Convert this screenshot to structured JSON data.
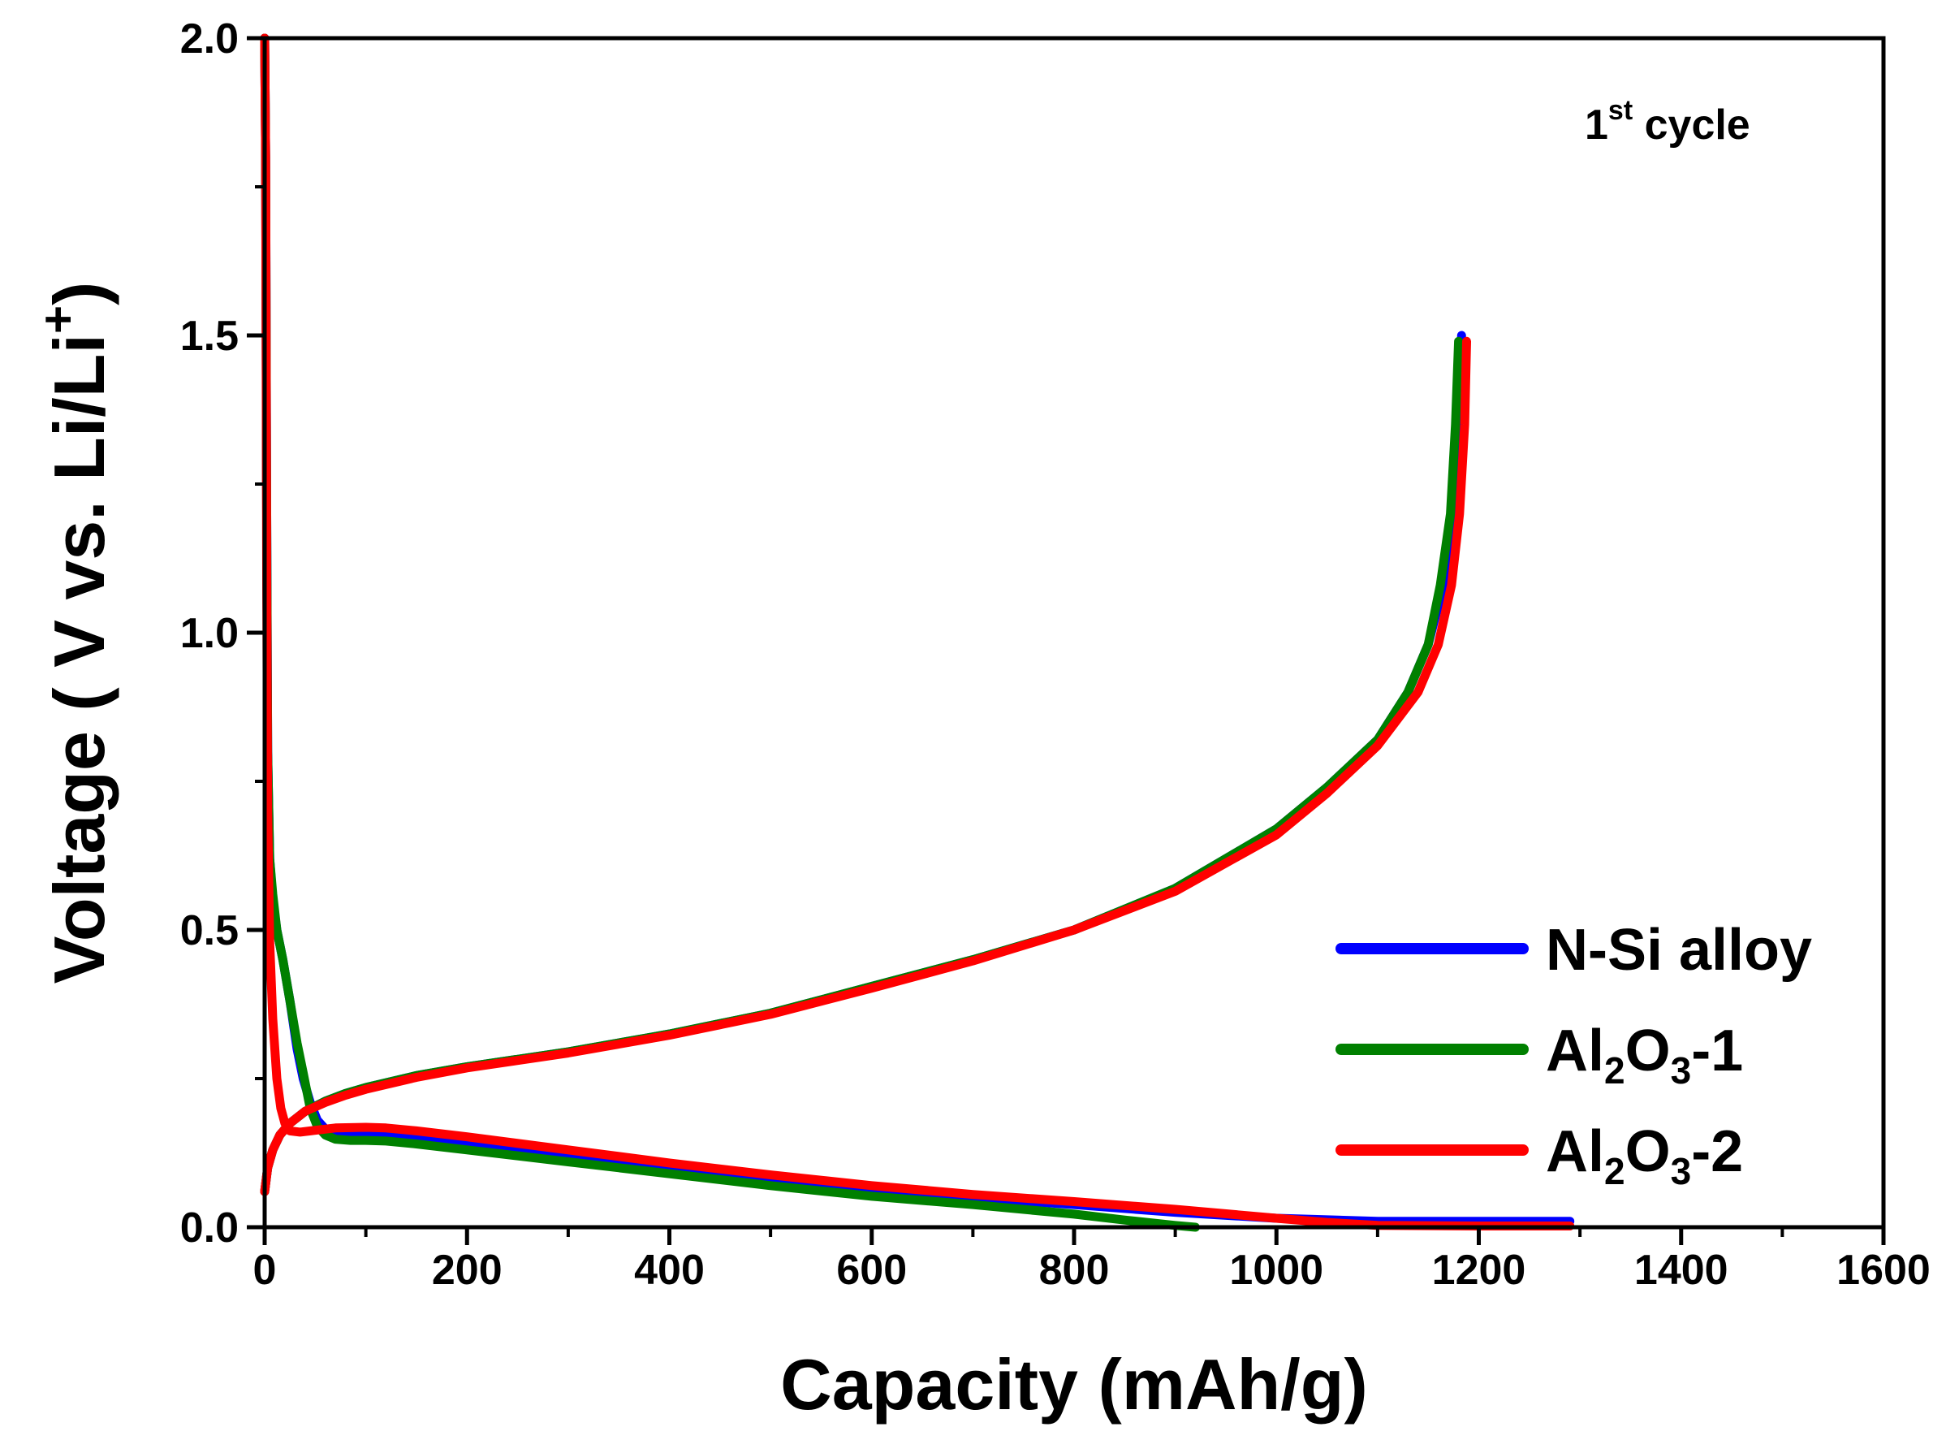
{
  "chart_data": {
    "type": "line",
    "title": "",
    "annotation": {
      "main": "1",
      "superscript": "st",
      "rest": " cycle"
    },
    "xlabel": "Capacity (mAh/g)",
    "ylabel": {
      "main": "Voltage ( V vs. Li/Li",
      "superscript": "+",
      "close": ")"
    },
    "xlim": [
      0,
      1600
    ],
    "ylim": [
      0,
      2.0
    ],
    "xticks": [
      "0",
      "200",
      "400",
      "600",
      "800",
      "1000",
      "1200",
      "1400",
      "1600"
    ],
    "yticks": [
      "0.0",
      "0.5",
      "1.0",
      "1.5",
      "2.0"
    ],
    "legend_position": "bottom-right",
    "series": [
      {
        "name": "N-Si alloy",
        "legend": {
          "parts": [
            {
              "t": "N-Si alloy"
            }
          ]
        },
        "color": "#0000ff",
        "discharge": [
          [
            0,
            2.0
          ],
          [
            1,
            1.8
          ],
          [
            2,
            1.2
          ],
          [
            3,
            0.8
          ],
          [
            5,
            0.62
          ],
          [
            8,
            0.55
          ],
          [
            12,
            0.5
          ],
          [
            18,
            0.45
          ],
          [
            25,
            0.38
          ],
          [
            32,
            0.3
          ],
          [
            38,
            0.25
          ],
          [
            45,
            0.21
          ],
          [
            52,
            0.18
          ],
          [
            60,
            0.165
          ],
          [
            70,
            0.158
          ],
          [
            85,
            0.155
          ],
          [
            100,
            0.156
          ],
          [
            120,
            0.155
          ],
          [
            150,
            0.15
          ],
          [
            200,
            0.14
          ],
          [
            300,
            0.12
          ],
          [
            400,
            0.1
          ],
          [
            500,
            0.08
          ],
          [
            600,
            0.065
          ],
          [
            700,
            0.05
          ],
          [
            800,
            0.038
          ],
          [
            900,
            0.025
          ],
          [
            1000,
            0.015
          ],
          [
            1100,
            0.01
          ],
          [
            1200,
            0.01
          ],
          [
            1290,
            0.01
          ]
        ],
        "charge": [
          [
            0,
            0.06
          ],
          [
            3,
            0.1
          ],
          [
            8,
            0.13
          ],
          [
            15,
            0.155
          ],
          [
            25,
            0.175
          ],
          [
            40,
            0.195
          ],
          [
            60,
            0.212
          ],
          [
            80,
            0.225
          ],
          [
            100,
            0.235
          ],
          [
            150,
            0.255
          ],
          [
            200,
            0.27
          ],
          [
            300,
            0.295
          ],
          [
            400,
            0.325
          ],
          [
            500,
            0.36
          ],
          [
            600,
            0.405
          ],
          [
            700,
            0.45
          ],
          [
            800,
            0.5
          ],
          [
            900,
            0.57
          ],
          [
            1000,
            0.67
          ],
          [
            1050,
            0.74
          ],
          [
            1100,
            0.82
          ],
          [
            1130,
            0.9
          ],
          [
            1150,
            0.98
          ],
          [
            1165,
            1.08
          ],
          [
            1175,
            1.2
          ],
          [
            1180,
            1.35
          ],
          [
            1183,
            1.5
          ]
        ]
      },
      {
        "name": "Al2O3-1",
        "legend": {
          "parts": [
            {
              "t": "Al"
            },
            {
              "t": "2",
              "sub": true
            },
            {
              "t": "O"
            },
            {
              "t": "3",
              "sub": true
            },
            {
              "t": "-1"
            }
          ]
        },
        "color": "#008000",
        "discharge": [
          [
            0,
            2.0
          ],
          [
            1,
            1.8
          ],
          [
            2,
            1.2
          ],
          [
            3,
            0.8
          ],
          [
            5,
            0.62
          ],
          [
            8,
            0.56
          ],
          [
            12,
            0.5
          ],
          [
            18,
            0.45
          ],
          [
            25,
            0.38
          ],
          [
            32,
            0.31
          ],
          [
            38,
            0.26
          ],
          [
            45,
            0.2
          ],
          [
            52,
            0.17
          ],
          [
            60,
            0.155
          ],
          [
            70,
            0.148
          ],
          [
            85,
            0.146
          ],
          [
            100,
            0.146
          ],
          [
            120,
            0.145
          ],
          [
            150,
            0.14
          ],
          [
            200,
            0.13
          ],
          [
            300,
            0.11
          ],
          [
            400,
            0.09
          ],
          [
            500,
            0.07
          ],
          [
            600,
            0.052
          ],
          [
            700,
            0.038
          ],
          [
            800,
            0.022
          ],
          [
            850,
            0.012
          ],
          [
            900,
            0.003
          ],
          [
            920,
            0.0
          ]
        ],
        "charge": [
          [
            0,
            0.06
          ],
          [
            3,
            0.1
          ],
          [
            8,
            0.13
          ],
          [
            15,
            0.155
          ],
          [
            25,
            0.175
          ],
          [
            40,
            0.195
          ],
          [
            60,
            0.212
          ],
          [
            80,
            0.225
          ],
          [
            100,
            0.235
          ],
          [
            150,
            0.255
          ],
          [
            200,
            0.27
          ],
          [
            300,
            0.295
          ],
          [
            400,
            0.325
          ],
          [
            500,
            0.36
          ],
          [
            600,
            0.405
          ],
          [
            700,
            0.45
          ],
          [
            800,
            0.5
          ],
          [
            900,
            0.57
          ],
          [
            1000,
            0.67
          ],
          [
            1050,
            0.74
          ],
          [
            1100,
            0.82
          ],
          [
            1130,
            0.9
          ],
          [
            1150,
            0.98
          ],
          [
            1162,
            1.08
          ],
          [
            1172,
            1.2
          ],
          [
            1177,
            1.35
          ],
          [
            1180,
            1.49
          ]
        ]
      },
      {
        "name": "Al2O3-2",
        "legend": {
          "parts": [
            {
              "t": "Al"
            },
            {
              "t": "2",
              "sub": true
            },
            {
              "t": "O"
            },
            {
              "t": "3",
              "sub": true
            },
            {
              "t": "-2"
            }
          ]
        },
        "color": "#ff0000",
        "discharge": [
          [
            0,
            2.0
          ],
          [
            1,
            1.8
          ],
          [
            2,
            1.1
          ],
          [
            3,
            0.7
          ],
          [
            5,
            0.48
          ],
          [
            8,
            0.35
          ],
          [
            12,
            0.25
          ],
          [
            16,
            0.2
          ],
          [
            20,
            0.175
          ],
          [
            25,
            0.162
          ],
          [
            35,
            0.16
          ],
          [
            50,
            0.163
          ],
          [
            70,
            0.167
          ],
          [
            100,
            0.168
          ],
          [
            120,
            0.167
          ],
          [
            150,
            0.162
          ],
          [
            200,
            0.152
          ],
          [
            300,
            0.13
          ],
          [
            400,
            0.108
          ],
          [
            500,
            0.088
          ],
          [
            600,
            0.07
          ],
          [
            700,
            0.055
          ],
          [
            800,
            0.043
          ],
          [
            900,
            0.03
          ],
          [
            1000,
            0.015
          ],
          [
            1050,
            0.008
          ],
          [
            1100,
            0.003
          ],
          [
            1200,
            0.002
          ],
          [
            1290,
            0.002
          ]
        ],
        "charge": [
          [
            0,
            0.06
          ],
          [
            3,
            0.1
          ],
          [
            8,
            0.13
          ],
          [
            15,
            0.155
          ],
          [
            25,
            0.175
          ],
          [
            40,
            0.195
          ],
          [
            60,
            0.21
          ],
          [
            80,
            0.222
          ],
          [
            100,
            0.232
          ],
          [
            150,
            0.252
          ],
          [
            200,
            0.268
          ],
          [
            300,
            0.293
          ],
          [
            400,
            0.323
          ],
          [
            500,
            0.358
          ],
          [
            600,
            0.402
          ],
          [
            700,
            0.448
          ],
          [
            800,
            0.5
          ],
          [
            900,
            0.565
          ],
          [
            1000,
            0.66
          ],
          [
            1050,
            0.73
          ],
          [
            1100,
            0.81
          ],
          [
            1140,
            0.9
          ],
          [
            1160,
            0.98
          ],
          [
            1173,
            1.08
          ],
          [
            1181,
            1.2
          ],
          [
            1186,
            1.35
          ],
          [
            1188,
            1.49
          ]
        ]
      }
    ]
  }
}
